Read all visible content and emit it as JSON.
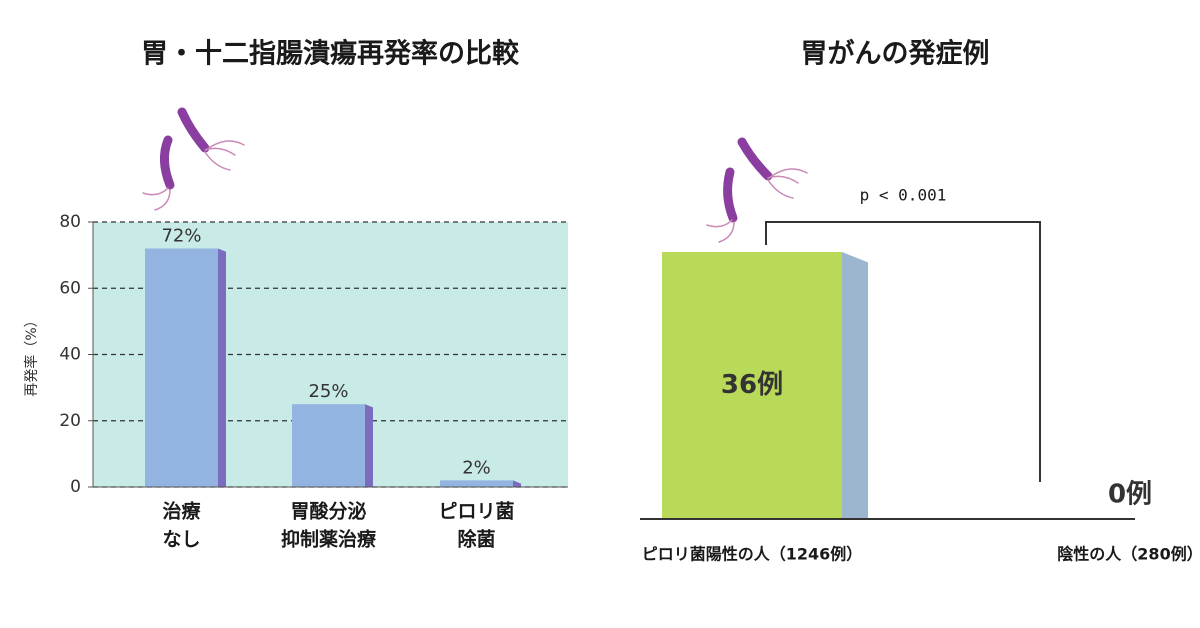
{
  "chart_data": [
    {
      "type": "bar3d",
      "title": "胃・十二指腸潰瘍再発率の比較",
      "ylabel": "再発率（%）",
      "categories": [
        [
          "治療",
          "なし"
        ],
        [
          "胃酸分泌",
          "抑制薬治療"
        ],
        [
          "ピロリ菌",
          "除菌"
        ]
      ],
      "values": [
        72,
        25,
        2
      ],
      "value_labels": [
        "72%",
        "25%",
        "2%"
      ],
      "color": "#93b3e0",
      "side_color": "#7b6cc0",
      "background": "#c9ebe7",
      "ylim": [
        0,
        80
      ],
      "yticks": [
        0,
        20,
        40,
        60,
        80
      ],
      "grid": true
    },
    {
      "type": "bar3d",
      "title": "胃がんの発症例",
      "annotation": "p < 0.001",
      "categories": [
        [
          "ピロリ菌陽性の人（1246例）"
        ],
        [
          "陰性の人（280例）"
        ]
      ],
      "values": [
        36,
        0
      ],
      "value_labels": [
        "36例",
        "0例"
      ],
      "color": "#b9d958",
      "side_color": "#9cb6cf",
      "grid": false
    }
  ]
}
